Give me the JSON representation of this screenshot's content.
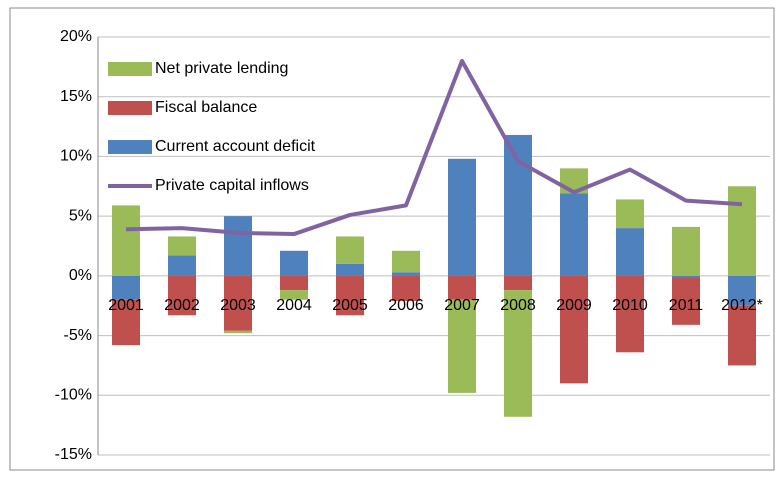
{
  "chart_data": {
    "type": "bar",
    "categories": [
      "2001",
      "2002",
      "2003",
      "2004",
      "2005",
      "2006",
      "2007",
      "2008",
      "2009",
      "2010",
      "2011",
      "2012*"
    ],
    "series": [
      {
        "name": "Current account deficit",
        "color": "#4f81bd",
        "values": [
          -2.0,
          1.7,
          5.0,
          2.1,
          1.0,
          0.3,
          9.8,
          11.8,
          6.9,
          4.0,
          -0.1,
          -2.5
        ]
      },
      {
        "name": "Fiscal balance",
        "color": "#c0504d",
        "values": [
          -3.8,
          -3.3,
          -4.6,
          -1.2,
          -3.3,
          -2.1,
          -2.0,
          -1.2,
          -9.0,
          -6.4,
          -4.0,
          -5.0
        ]
      },
      {
        "name": "Net private lending",
        "color": "#9bbb59",
        "values": [
          5.9,
          1.6,
          -0.2,
          -0.8,
          2.3,
          1.8,
          -7.8,
          -10.6,
          2.1,
          2.4,
          4.1,
          7.5
        ]
      },
      {
        "name": "Private capital inflows",
        "type": "line",
        "color": "#8064a2",
        "values": [
          3.9,
          4.0,
          3.6,
          3.5,
          5.1,
          5.9,
          18.0,
          9.6,
          7.0,
          8.9,
          6.3,
          6.0
        ]
      }
    ],
    "ylim": [
      -15,
      20
    ],
    "yticks": [
      {
        "value": -15,
        "label": "-15%"
      },
      {
        "value": -10,
        "label": "-10%"
      },
      {
        "value": -5,
        "label": "-5%"
      },
      {
        "value": 0,
        "label": "0%"
      },
      {
        "value": 5,
        "label": "5%"
      },
      {
        "value": 10,
        "label": "10%"
      },
      {
        "value": 15,
        "label": "15%"
      },
      {
        "value": 20,
        "label": "20%"
      }
    ],
    "grid": true
  }
}
